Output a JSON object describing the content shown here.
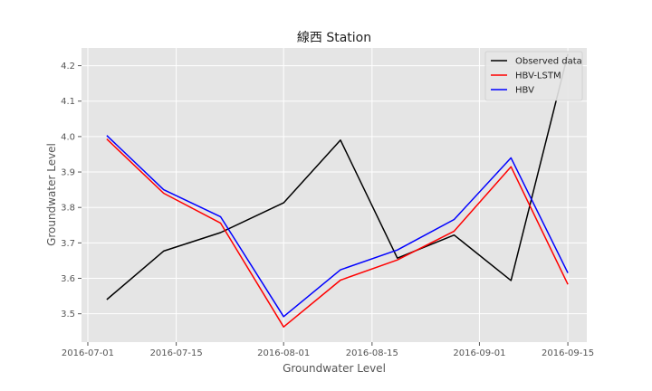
{
  "chart_data": {
    "type": "line",
    "title": "線西 Station",
    "xlabel": "Groundwater Level",
    "ylabel": "Groundwater Level",
    "x": [
      "2016-07-04",
      "2016-07-13",
      "2016-07-22",
      "2016-08-01",
      "2016-08-10",
      "2016-08-19",
      "2016-08-28",
      "2016-09-06",
      "2016-09-15"
    ],
    "xticks": [
      "2016-07-01",
      "2016-07-15",
      "2016-08-01",
      "2016-08-15",
      "2016-09-01",
      "2016-09-15"
    ],
    "yticks": [
      3.5,
      3.6,
      3.7,
      3.8,
      3.9,
      4.0,
      4.1,
      4.2
    ],
    "xlim": [
      "2016-06-30",
      "2016-09-18"
    ],
    "ylim": [
      3.42,
      4.25
    ],
    "grid": true,
    "legend_position": "top-right",
    "series": [
      {
        "name": "Observed data",
        "color": "#000000",
        "values": [
          3.54,
          3.677,
          3.729,
          3.813,
          3.99,
          3.657,
          3.722,
          3.594,
          4.233
        ]
      },
      {
        "name": "HBV-LSTM",
        "color": "#ff0000",
        "values": [
          3.993,
          3.84,
          3.756,
          3.463,
          3.595,
          3.652,
          3.733,
          3.915,
          3.583
        ]
      },
      {
        "name": "HBV",
        "color": "#0000ff",
        "values": [
          4.003,
          3.85,
          3.774,
          3.492,
          3.624,
          3.68,
          3.766,
          3.94,
          3.615
        ]
      }
    ]
  }
}
